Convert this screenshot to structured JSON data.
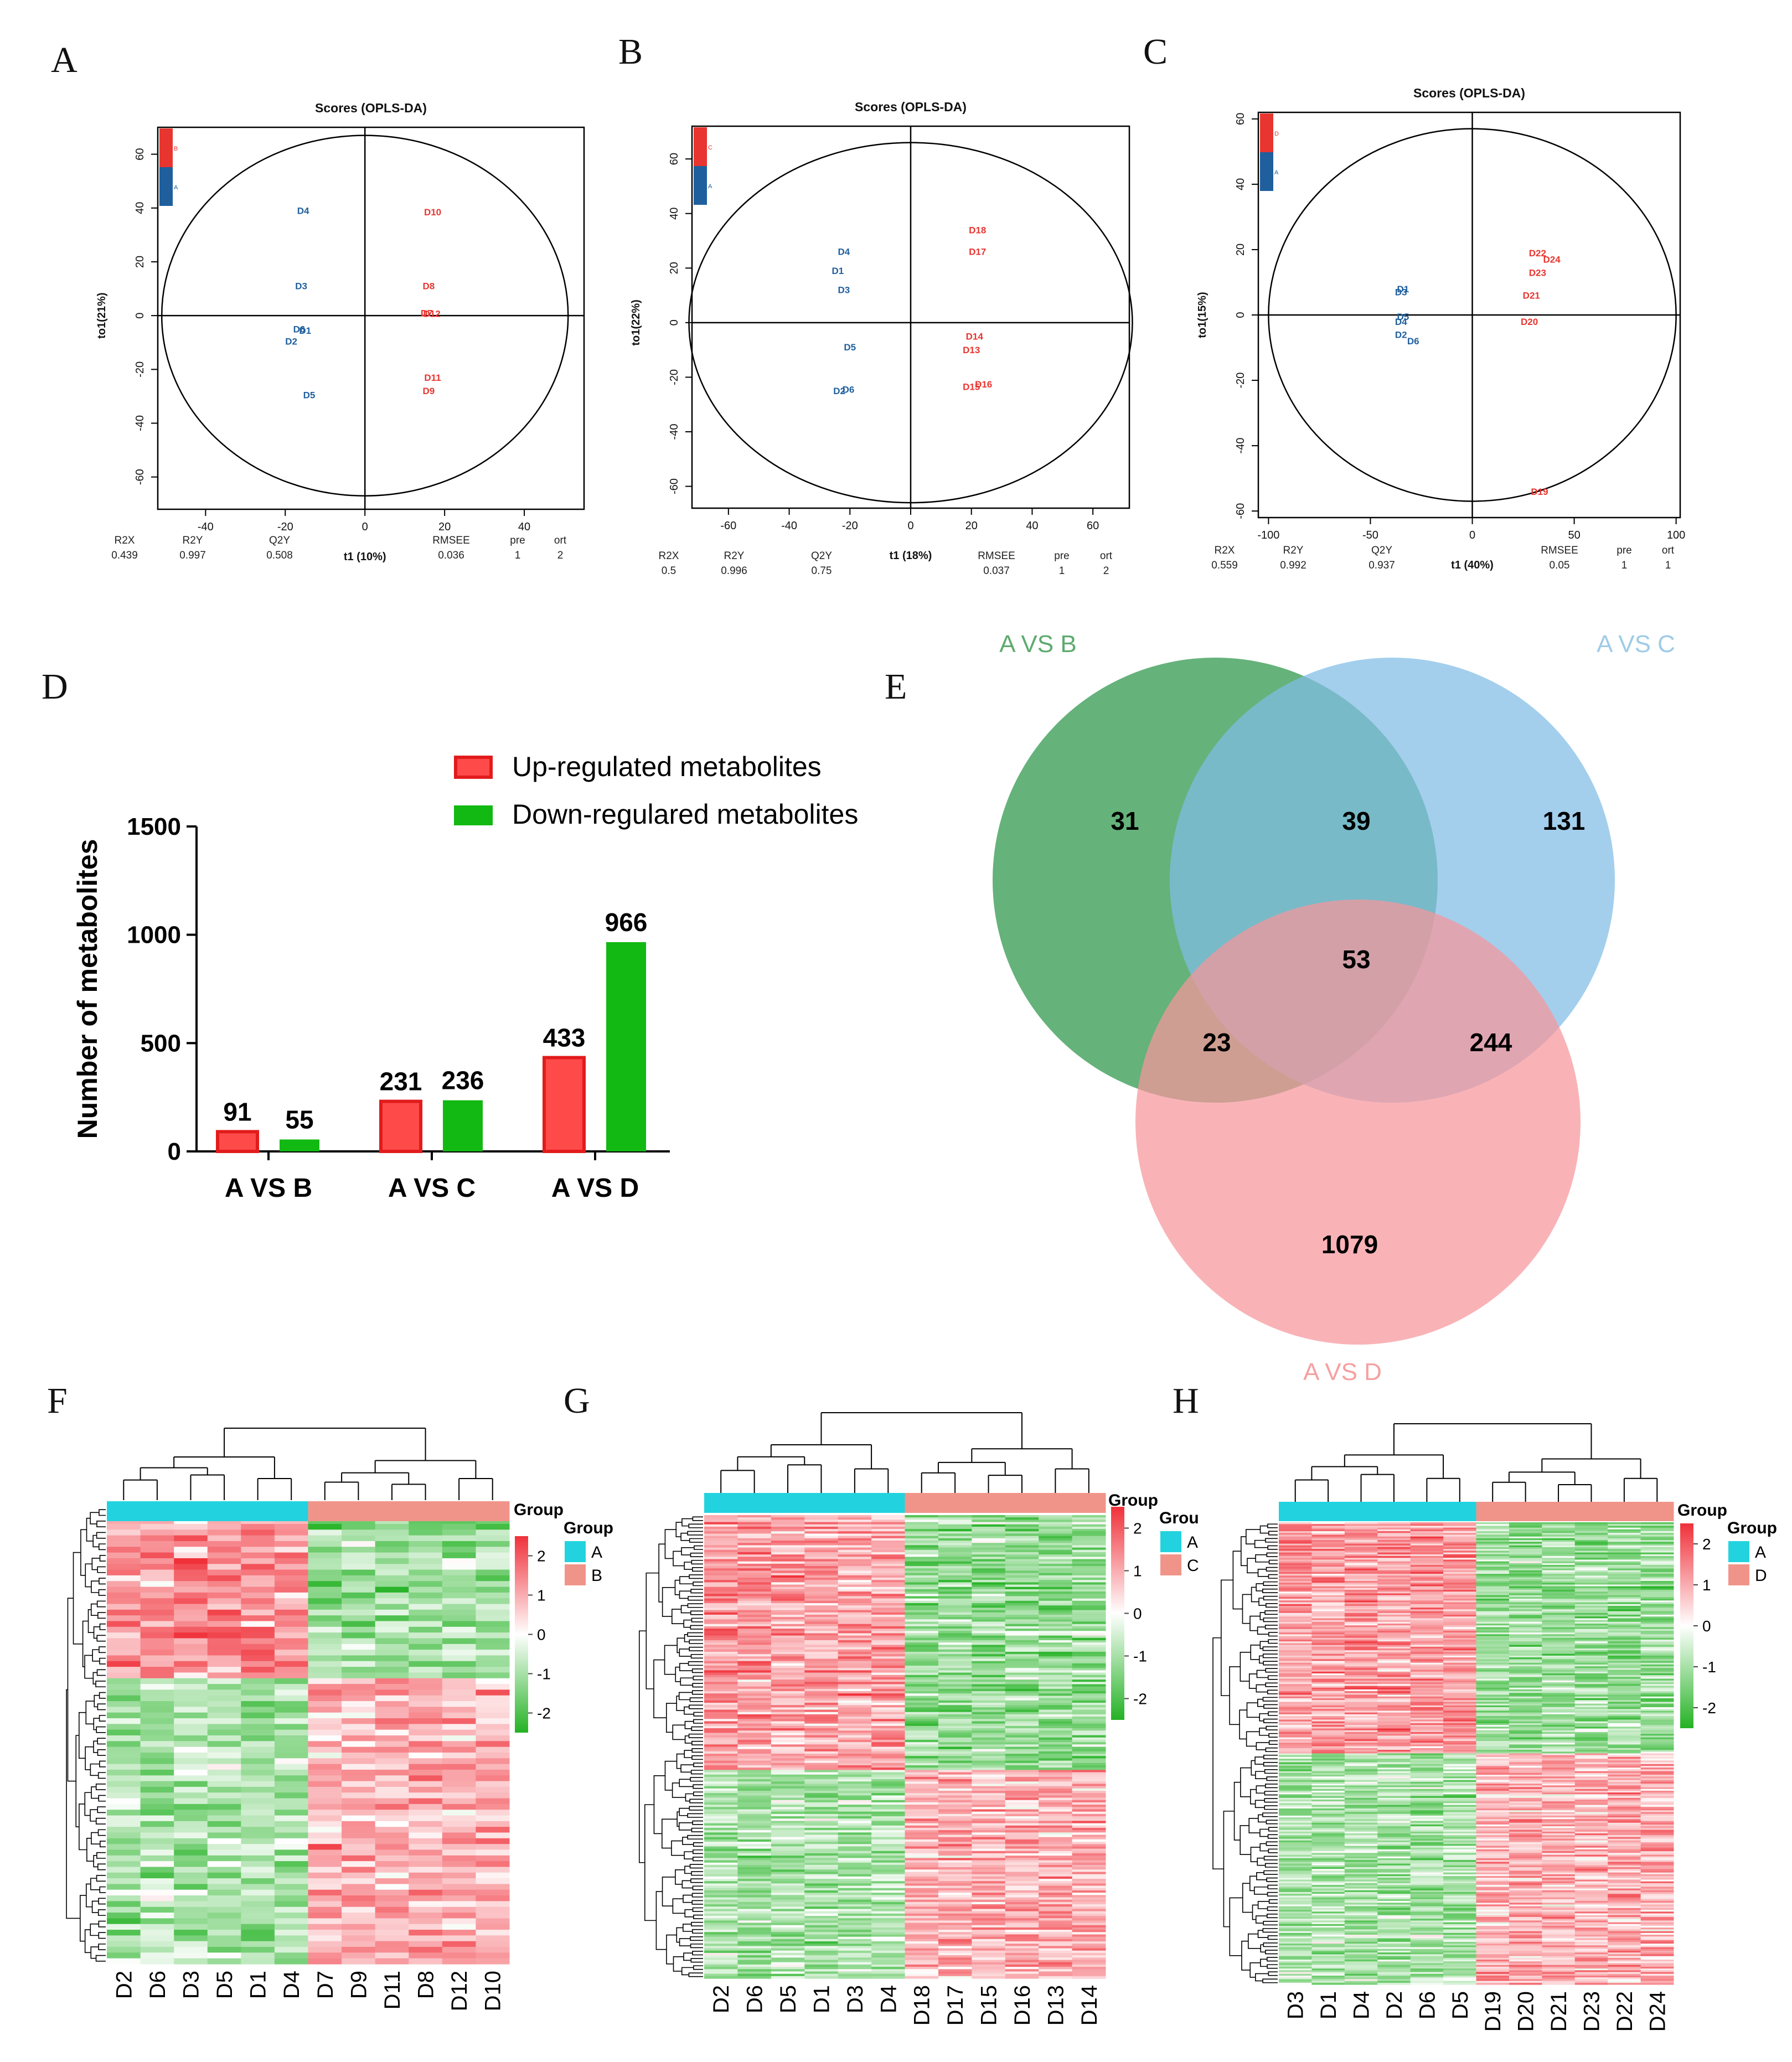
{
  "colors": {
    "red": "#e8352f",
    "blue": "#1f5f9e",
    "green": "#12b912",
    "venn_green": "#3f9f5a",
    "venn_blue": "#7fbde6",
    "venn_pink": "#f7969b",
    "cyan": "#22d3df",
    "salmon": "#f0948a",
    "heat_red": "#f0313a",
    "heat_green": "#24b224"
  },
  "panels": {
    "A": "A",
    "B": "B",
    "C": "C",
    "D": "D",
    "E": "E",
    "F": "F",
    "G": "G",
    "H": "H"
  },
  "chart_data": [
    {
      "id": "A",
      "type": "scatter",
      "title": "Scores (OPLS-DA)",
      "xlabel": "t1 (10%)",
      "ylabel": "to1(21%)",
      "xlim": [
        -52,
        55
      ],
      "ylim": [
        -72,
        70
      ],
      "xticks": [
        -40,
        -20,
        0,
        20,
        40
      ],
      "yticks": [
        -60,
        -40,
        -20,
        0,
        20,
        40,
        60
      ],
      "ellipse": {
        "rx": 51,
        "ry": 67
      },
      "legend": [
        {
          "label": "B",
          "group": "red"
        },
        {
          "label": "A",
          "group": "blue"
        }
      ],
      "points": [
        {
          "label": "D4",
          "x": -15.5,
          "y": 39,
          "group": "blue"
        },
        {
          "label": "D3",
          "x": -16,
          "y": 11,
          "group": "blue"
        },
        {
          "label": "D6",
          "x": -16.5,
          "y": -5,
          "group": "blue"
        },
        {
          "label": "D1",
          "x": -15,
          "y": -5.5,
          "group": "blue"
        },
        {
          "label": "D2",
          "x": -18.5,
          "y": -9.5,
          "group": "blue"
        },
        {
          "label": "D5",
          "x": -14,
          "y": -29.5,
          "group": "blue"
        },
        {
          "label": "D10",
          "x": 17,
          "y": 38.5,
          "group": "red"
        },
        {
          "label": "D8",
          "x": 16,
          "y": 11,
          "group": "red"
        },
        {
          "label": "D7",
          "x": 15.5,
          "y": 1,
          "group": "red"
        },
        {
          "label": "D12",
          "x": 16.8,
          "y": 0.8,
          "group": "red"
        },
        {
          "label": "D11",
          "x": 17,
          "y": -23,
          "group": "red"
        },
        {
          "label": "D9",
          "x": 16,
          "y": -28,
          "group": "red"
        }
      ],
      "stats": {
        "headers": [
          "R2X",
          "R2Y",
          "Q2Y",
          "RMSEE",
          "pre",
          "ort"
        ],
        "values": [
          "0.439",
          "0.997",
          "0.508",
          "0.036",
          "1",
          "2"
        ]
      }
    },
    {
      "id": "B",
      "type": "scatter",
      "title": "Scores (OPLS-DA)",
      "xlabel": "t1 (18%)",
      "ylabel": "to1(22%)",
      "xlim": [
        -72,
        72
      ],
      "ylim": [
        -68,
        72
      ],
      "xticks": [
        -60,
        -40,
        -20,
        0,
        20,
        40,
        60
      ],
      "yticks": [
        -60,
        -40,
        -20,
        0,
        20,
        40,
        60
      ],
      "ellipse": {
        "rx": 73,
        "ry": 66
      },
      "legend": [
        {
          "label": "C",
          "group": "red"
        },
        {
          "label": "A",
          "group": "blue"
        }
      ],
      "points": [
        {
          "label": "D4",
          "x": -22,
          "y": 26,
          "group": "blue"
        },
        {
          "label": "D1",
          "x": -24,
          "y": 19,
          "group": "blue"
        },
        {
          "label": "D3",
          "x": -22,
          "y": 12,
          "group": "blue"
        },
        {
          "label": "D5",
          "x": -20,
          "y": -9,
          "group": "blue"
        },
        {
          "label": "D2",
          "x": -23.5,
          "y": -25,
          "group": "blue"
        },
        {
          "label": "D6",
          "x": -20.5,
          "y": -24.5,
          "group": "blue"
        },
        {
          "label": "D18",
          "x": 22,
          "y": 34,
          "group": "red"
        },
        {
          "label": "D17",
          "x": 22,
          "y": 26,
          "group": "red"
        },
        {
          "label": "D14",
          "x": 21,
          "y": -5,
          "group": "red"
        },
        {
          "label": "D13",
          "x": 20,
          "y": -10,
          "group": "red"
        },
        {
          "label": "D15",
          "x": 20,
          "y": -23.5,
          "group": "red"
        },
        {
          "label": "D16",
          "x": 24,
          "y": -22.5,
          "group": "red"
        }
      ],
      "stats": {
        "headers": [
          "R2X",
          "R2Y",
          "Q2Y",
          "RMSEE",
          "pre",
          "ort"
        ],
        "values": [
          "0.5",
          "0.996",
          "0.75",
          "0.037",
          "1",
          "2"
        ]
      }
    },
    {
      "id": "C",
      "type": "scatter",
      "title": "Scores (OPLS-DA)",
      "xlabel": "t1 (40%)",
      "ylabel": "to1(15%)",
      "xlim": [
        -105,
        102
      ],
      "ylim": [
        -62,
        62
      ],
      "xticks": [
        -100,
        -50,
        0,
        50,
        100
      ],
      "yticks": [
        -60,
        -40,
        -20,
        0,
        20,
        40,
        60
      ],
      "ellipse": {
        "rx": 100,
        "ry": 57
      },
      "legend": [
        {
          "label": "D",
          "group": "red"
        },
        {
          "label": "A",
          "group": "blue"
        }
      ],
      "points": [
        {
          "label": "D1",
          "x": -34,
          "y": 8,
          "group": "blue"
        },
        {
          "label": "D3",
          "x": -35,
          "y": 7,
          "group": "blue"
        },
        {
          "label": "D5",
          "x": -34,
          "y": -0.5,
          "group": "blue"
        },
        {
          "label": "D4",
          "x": -35,
          "y": -2,
          "group": "blue"
        },
        {
          "label": "D2",
          "x": -35,
          "y": -6,
          "group": "blue"
        },
        {
          "label": "D6",
          "x": -29,
          "y": -8,
          "group": "blue"
        },
        {
          "label": "D22",
          "x": 32,
          "y": 19,
          "group": "red"
        },
        {
          "label": "D24",
          "x": 39,
          "y": 17,
          "group": "red"
        },
        {
          "label": "D23",
          "x": 32,
          "y": 13,
          "group": "red"
        },
        {
          "label": "D21",
          "x": 29,
          "y": 6,
          "group": "red"
        },
        {
          "label": "D20",
          "x": 28,
          "y": -2,
          "group": "red"
        },
        {
          "label": "D19",
          "x": 33,
          "y": -54,
          "group": "red"
        }
      ],
      "stats": {
        "headers": [
          "R2X",
          "R2Y",
          "Q2Y",
          "RMSEE",
          "pre",
          "ort"
        ],
        "values": [
          "0.559",
          "0.992",
          "0.937",
          "0.05",
          "1",
          "1"
        ]
      }
    },
    {
      "id": "D",
      "type": "bar",
      "categories": [
        "A VS B",
        "A VS C",
        "A VS D"
      ],
      "series": [
        {
          "name": "Up-regulated metabolites",
          "values": [
            91,
            231,
            433
          ]
        },
        {
          "name": "Down-regulared metabolites",
          "values": [
            55,
            236,
            966
          ]
        }
      ],
      "ylabel": "Number of metabolites",
      "ylim": [
        0,
        1500
      ],
      "yticks": [
        0,
        500,
        1000,
        1500
      ],
      "legend_position": "top-right"
    },
    {
      "id": "E",
      "type": "venn",
      "sets": [
        "A VS B",
        "A VS C",
        "A VS D"
      ],
      "regions": {
        "only_AB": 31,
        "only_AC": 131,
        "only_AD": 1079,
        "AB_AC": 39,
        "AB_AD": 23,
        "AC_AD": 244,
        "all": 53
      }
    },
    {
      "id": "F",
      "type": "heatmap",
      "rows": 80,
      "samples": [
        "D2",
        "D6",
        "D3",
        "D5",
        "D1",
        "D4",
        "D7",
        "D9",
        "D11",
        "D8",
        "D12",
        "D10"
      ],
      "groups": [
        "A",
        "A",
        "A",
        "A",
        "A",
        "A",
        "B",
        "B",
        "B",
        "B",
        "B",
        "B"
      ],
      "legend_title": "Group",
      "group_legend_title": "Group",
      "group_labels": [
        "A",
        "B"
      ],
      "scale_ticks": [
        2,
        1,
        0,
        -1,
        -2
      ]
    },
    {
      "id": "G",
      "type": "heatmap",
      "rows": 200,
      "samples": [
        "D2",
        "D6",
        "D5",
        "D1",
        "D3",
        "D4",
        "D18",
        "D17",
        "D15",
        "D16",
        "D13",
        "D14"
      ],
      "groups": [
        "A",
        "A",
        "A",
        "A",
        "A",
        "A",
        "C",
        "C",
        "C",
        "C",
        "C",
        "C"
      ],
      "legend_title": "Group",
      "group_legend_title": "Grou",
      "group_labels": [
        "A",
        "C"
      ],
      "scale_ticks": [
        2,
        1,
        0,
        -1,
        -2
      ]
    },
    {
      "id": "H",
      "type": "heatmap",
      "rows": 260,
      "samples": [
        "D3",
        "D1",
        "D4",
        "D2",
        "D6",
        "D5",
        "D19",
        "D20",
        "D21",
        "D23",
        "D22",
        "D24"
      ],
      "groups": [
        "A",
        "A",
        "A",
        "A",
        "A",
        "A",
        "D",
        "D",
        "D",
        "D",
        "D",
        "D"
      ],
      "legend_title": "Group",
      "group_legend_title": "Group",
      "group_labels": [
        "A",
        "D"
      ],
      "scale_ticks": [
        2,
        1,
        0,
        -1,
        -2
      ]
    }
  ]
}
